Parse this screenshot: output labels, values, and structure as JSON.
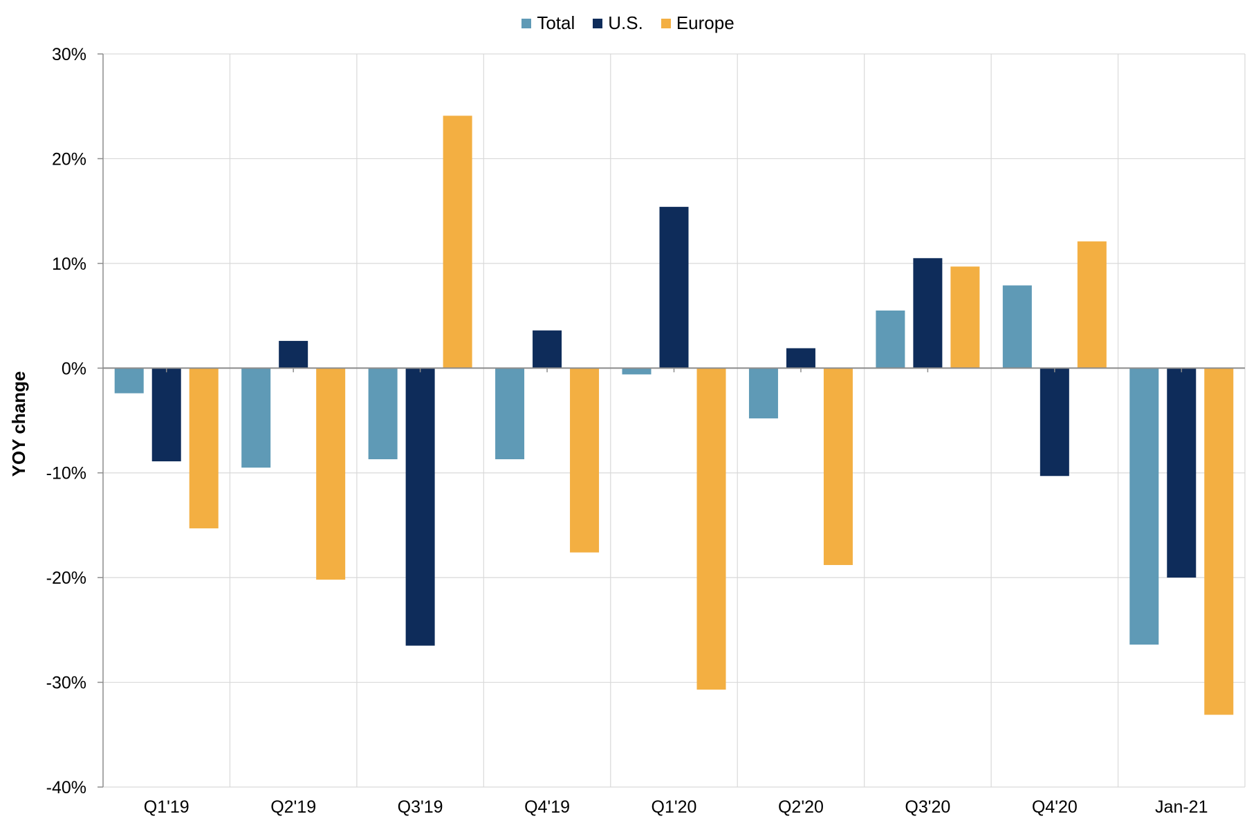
{
  "colors": {
    "Total": "#5f9ab6",
    "U.S.": "#0e2c5a",
    "Europe": "#f3af42",
    "grid": "#d9d9d9",
    "axis": "#8c8c8c"
  },
  "legend": [
    {
      "name": "Total",
      "color": "#5f9ab6"
    },
    {
      "name": "U.S.",
      "color": "#0e2c5a"
    },
    {
      "name": "Europe",
      "color": "#f3af42"
    }
  ],
  "chart_data": {
    "type": "bar",
    "title": "",
    "xlabel": "",
    "ylabel": "YOY change",
    "ylim": [
      -40,
      30
    ],
    "yticks": [
      30,
      20,
      10,
      0,
      -10,
      -20,
      -30,
      -40
    ],
    "ytick_labels": [
      "30%",
      "20%",
      "10%",
      "0%",
      "-10%",
      "-20%",
      "-30%",
      "-40%"
    ],
    "grid": true,
    "legend_position": "top-center",
    "categories": [
      "Q1'19",
      "Q2'19",
      "Q3'19",
      "Q4'19",
      "Q1'20",
      "Q2'20",
      "Q3'20",
      "Q4'20",
      "Jan-21"
    ],
    "series": [
      {
        "name": "Total",
        "values": [
          -2.4,
          -9.5,
          -8.7,
          -8.7,
          -0.6,
          -4.8,
          5.5,
          7.9,
          -26.4
        ]
      },
      {
        "name": "U.S.",
        "values": [
          -8.9,
          2.6,
          -26.5,
          3.6,
          15.4,
          1.9,
          10.5,
          -10.3,
          -20.0
        ]
      },
      {
        "name": "Europe",
        "values": [
          -15.3,
          -20.2,
          24.1,
          -17.6,
          -30.7,
          -18.8,
          9.7,
          12.1,
          -33.1
        ]
      }
    ]
  }
}
